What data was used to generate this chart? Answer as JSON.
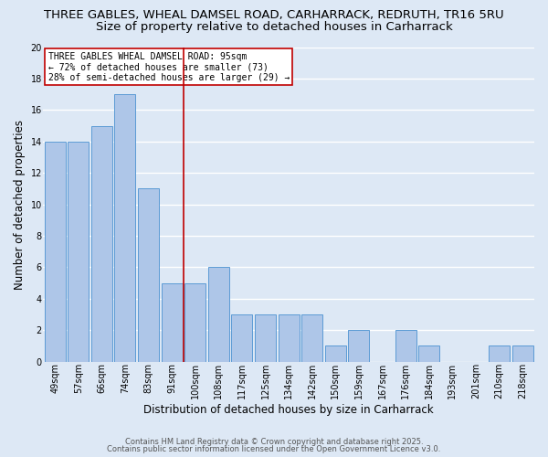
{
  "title_line1": "THREE GABLES, WHEAL DAMSEL ROAD, CARHARRACK, REDRUTH, TR16 5RU",
  "title_line2": "Size of property relative to detached houses in Carharrack",
  "xlabel": "Distribution of detached houses by size in Carharrack",
  "ylabel": "Number of detached properties",
  "categories": [
    "49sqm",
    "57sqm",
    "66sqm",
    "74sqm",
    "83sqm",
    "91sqm",
    "100sqm",
    "108sqm",
    "117sqm",
    "125sqm",
    "134sqm",
    "142sqm",
    "150sqm",
    "159sqm",
    "167sqm",
    "176sqm",
    "184sqm",
    "193sqm",
    "201sqm",
    "210sqm",
    "218sqm"
  ],
  "values": [
    14,
    14,
    15,
    17,
    11,
    5,
    5,
    6,
    3,
    3,
    3,
    3,
    1,
    2,
    0,
    2,
    1,
    0,
    0,
    1,
    1
  ],
  "bar_color": "#aec6e8",
  "bar_edge_color": "#5b9bd5",
  "ref_line_x": 5.5,
  "ref_line_color": "#c00000",
  "annotation_text": "THREE GABLES WHEAL DAMSEL ROAD: 95sqm\n← 72% of detached houses are smaller (73)\n28% of semi-detached houses are larger (29) →",
  "annotation_box_color": "#ffffff",
  "annotation_box_edge_color": "#c00000",
  "ylim": [
    0,
    20
  ],
  "yticks": [
    0,
    2,
    4,
    6,
    8,
    10,
    12,
    14,
    16,
    18,
    20
  ],
  "background_color": "#dde8f5",
  "plot_bg_color": "#dde8f5",
  "grid_color": "#ffffff",
  "footer_line1": "Contains HM Land Registry data © Crown copyright and database right 2025.",
  "footer_line2": "Contains public sector information licensed under the Open Government Licence v3.0.",
  "title_fontsize": 9.5,
  "subtitle_fontsize": 9.5,
  "axis_label_fontsize": 8.5,
  "tick_fontsize": 7.0,
  "annotation_fontsize": 7.0,
  "footer_fontsize": 6.0
}
